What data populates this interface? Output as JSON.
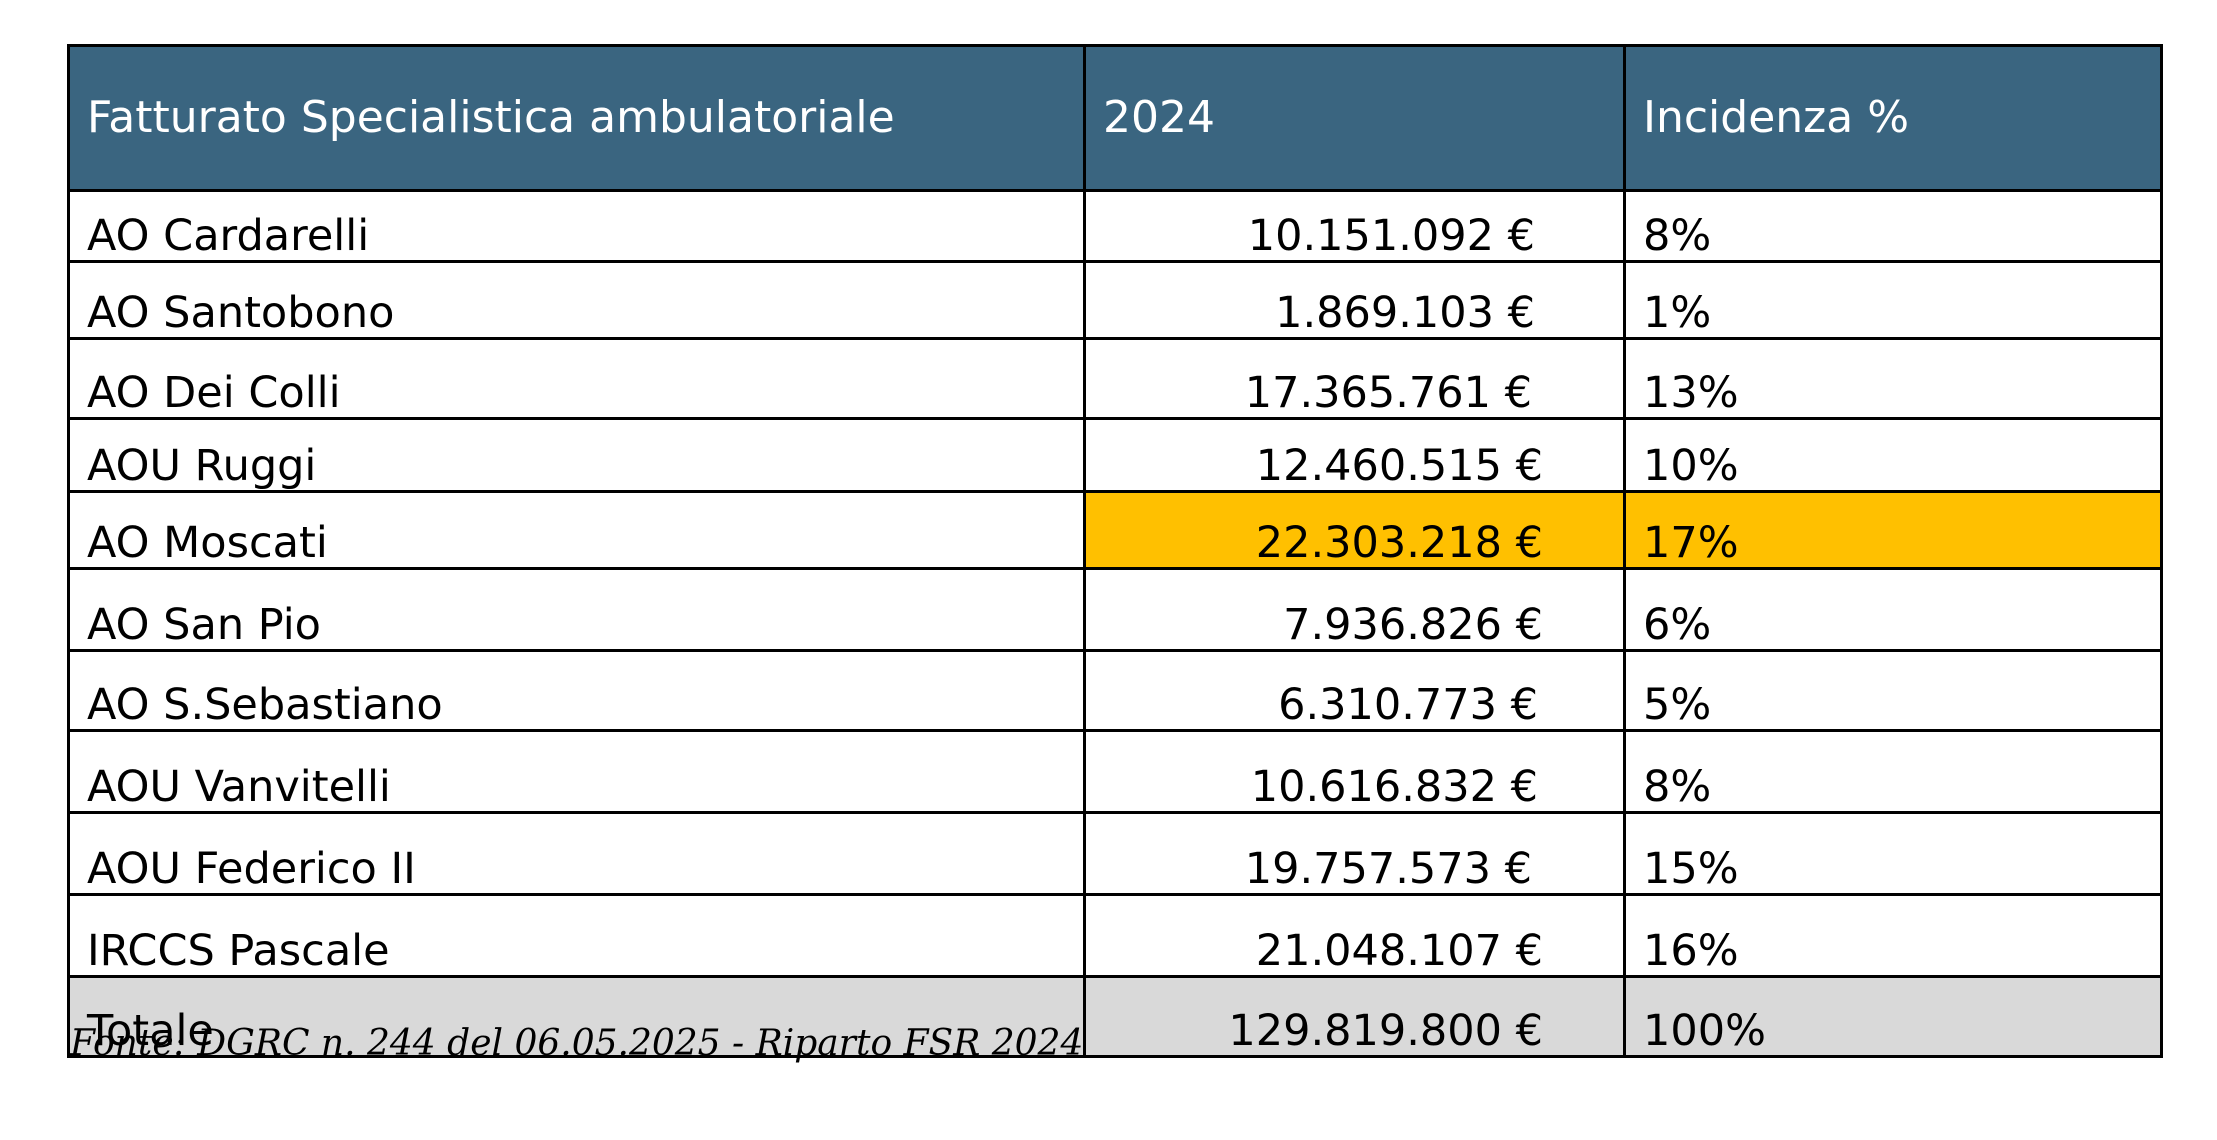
{
  "table": {
    "headers": [
      "Fatturato Specialistica ambulatoriale",
      "2024",
      "Incidenza %"
    ],
    "rows": [
      {
        "name": "AO Cardarelli",
        "value": "10.151.092 €",
        "share": "8%"
      },
      {
        "name": "AO Santobono",
        "value": "1.869.103 €",
        "share": "1%"
      },
      {
        "name": "AO Dei Colli",
        "value": "17.365.761 €",
        "share": "13%"
      },
      {
        "name": "AOU Ruggi",
        "value": "12.460.515 €",
        "share": "10%"
      },
      {
        "name": "AO Moscati",
        "value": "22.303.218 €",
        "share": "17%"
      },
      {
        "name": "AO San Pio",
        "value": "7.936.826 €",
        "share": "6%"
      },
      {
        "name": "AO S.Sebastiano",
        "value": "6.310.773 €",
        "share": "5%"
      },
      {
        "name": "AOU Vanvitelli",
        "value": "10.616.832 €",
        "share": "8%"
      },
      {
        "name": "AOU Federico II",
        "value": "19.757.573 €",
        "share": "15%"
      },
      {
        "name": "IRCCS Pascale",
        "value": "21.048.107 €",
        "share": "16%"
      }
    ],
    "total": {
      "name": "Totale",
      "value": "129.819.800 €",
      "share": "100%"
    }
  },
  "source": "Fonte: DGRC n. 244 del 06.05.2025 - Riparto FSR 2024",
  "colors": {
    "header_bg": "#3a6580",
    "highlight": "#ffc000",
    "total_bg": "#d9d9d9"
  }
}
